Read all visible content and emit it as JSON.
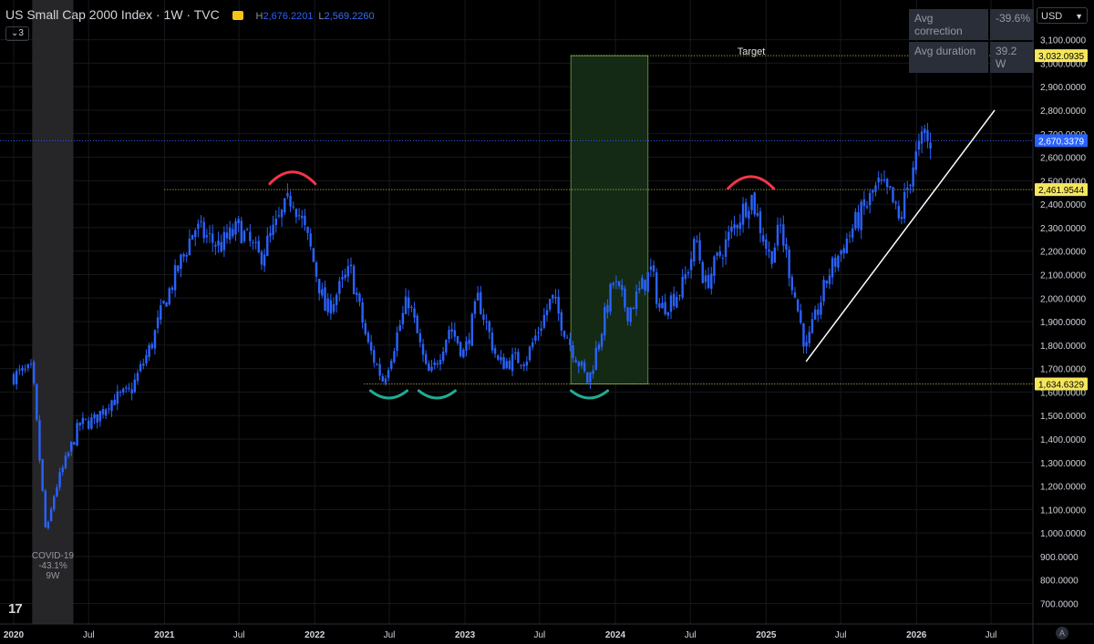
{
  "header": {
    "title": "US Small Cap 2000 Index · 1W · TVC",
    "high_label": "H",
    "high_value": "2,676.2201",
    "low_label": "L",
    "low_value": "2,569.2260",
    "collapse_label": "3"
  },
  "stats": {
    "rows": [
      {
        "label": "Avg correction",
        "value": "-39.6%"
      },
      {
        "label": "Avg duration",
        "value": "39.2 W"
      }
    ]
  },
  "currency": "USD",
  "auto_label": "A",
  "logo_text": "17",
  "colors": {
    "candles": "#2962ff",
    "resistance_arc": "#f23645",
    "support_arc": "#22ab94",
    "trendline": "#ffffff",
    "level_line": "#d4c45c",
    "price_line": "#2962ff",
    "covid_band": "#2a2a2e",
    "box_fill": "#142a14",
    "box_stroke": "#5a8a3a",
    "level_label_bg": "#f5e65b",
    "price_label_bg": "#2962ff"
  },
  "chart_data": {
    "type": "candlestick",
    "interval": "1W",
    "ylim": [
      650,
      3150
    ],
    "y_ticks": [
      700,
      800,
      900,
      1000,
      1100,
      1200,
      1300,
      1400,
      1500,
      1600,
      1700,
      1800,
      1900,
      2000,
      2100,
      2200,
      2300,
      2400,
      2500,
      2600,
      2700,
      2800,
      2900,
      3000,
      3100
    ],
    "y_tick_labels": [
      "700.0000",
      "800.0000",
      "900.0000",
      "1,000.0000",
      "1,100.0000",
      "1,200.0000",
      "1,300.0000",
      "1,400.0000",
      "1,500.0000",
      "1,600.0000",
      "1,700.0000",
      "1,800.0000",
      "1,900.0000",
      "2,000.0000",
      "2,100.0000",
      "2,200.0000",
      "2,300.0000",
      "2,400.0000",
      "2,500.0000",
      "2,600.0000",
      "2,700.0000",
      "2,800.0000",
      "2,900.0000",
      "3,000.0000",
      "3,100.0000"
    ],
    "x_ticks": [
      {
        "date": "2020-01-01",
        "label": "2020",
        "bold": true
      },
      {
        "date": "2020-07-01",
        "label": "Jul",
        "bold": false
      },
      {
        "date": "2021-01-01",
        "label": "2021",
        "bold": true
      },
      {
        "date": "2021-07-01",
        "label": "Jul",
        "bold": false
      },
      {
        "date": "2022-01-01",
        "label": "2022",
        "bold": true
      },
      {
        "date": "2022-07-01",
        "label": "Jul",
        "bold": false
      },
      {
        "date": "2023-01-01",
        "label": "2023",
        "bold": true
      },
      {
        "date": "2023-07-01",
        "label": "Jul",
        "bold": false
      },
      {
        "date": "2024-01-01",
        "label": "2024",
        "bold": true
      },
      {
        "date": "2024-07-01",
        "label": "Jul",
        "bold": false
      },
      {
        "date": "2025-01-01",
        "label": "2025",
        "bold": true
      },
      {
        "date": "2025-07-01",
        "label": "Jul",
        "bold": false
      },
      {
        "date": "2026-01-01",
        "label": "2026",
        "bold": true
      },
      {
        "date": "2026-07-01",
        "label": "Jul",
        "bold": false
      }
    ],
    "price_path": [
      [
        "2020-01-01",
        1670
      ],
      [
        "2020-02-15",
        1690
      ],
      [
        "2020-03-20",
        980
      ],
      [
        "2020-04-10",
        1180
      ],
      [
        "2020-06-08",
        1460
      ],
      [
        "2020-07-15",
        1480
      ],
      [
        "2020-08-20",
        1560
      ],
      [
        "2020-10-10",
        1600
      ],
      [
        "2020-11-30",
        1800
      ],
      [
        "2020-12-31",
        1975
      ],
      [
        "2021-03-15",
        2300
      ],
      [
        "2021-05-15",
        2220
      ],
      [
        "2021-07-01",
        2300
      ],
      [
        "2021-08-20",
        2170
      ],
      [
        "2021-11-08",
        2440
      ],
      [
        "2021-12-20",
        2220
      ],
      [
        "2022-01-28",
        1940
      ],
      [
        "2022-03-29",
        2120
      ],
      [
        "2022-05-10",
        1800
      ],
      [
        "2022-06-16",
        1650
      ],
      [
        "2022-08-16",
        2000
      ],
      [
        "2022-09-30",
        1680
      ],
      [
        "2022-10-13",
        1680
      ],
      [
        "2022-11-25",
        1880
      ],
      [
        "2022-12-30",
        1760
      ],
      [
        "2023-02-02",
        2000
      ],
      [
        "2023-03-23",
        1720
      ],
      [
        "2023-05-31",
        1750
      ],
      [
        "2023-07-31",
        2000
      ],
      [
        "2023-09-15",
        1800
      ],
      [
        "2023-10-27",
        1640
      ],
      [
        "2023-12-27",
        2070
      ],
      [
        "2024-02-01",
        1940
      ],
      [
        "2024-03-28",
        2120
      ],
      [
        "2024-04-18",
        1950
      ],
      [
        "2024-06-10",
        2040
      ],
      [
        "2024-07-16",
        2250
      ],
      [
        "2024-08-05",
        2050
      ],
      [
        "2024-09-15",
        2200
      ],
      [
        "2024-11-25",
        2440
      ],
      [
        "2025-01-10",
        2170
      ],
      [
        "2025-02-05",
        2300
      ],
      [
        "2025-04-08",
        1780
      ],
      [
        "2025-06-01",
        2100
      ],
      [
        "2025-07-31",
        2300
      ],
      [
        "2025-09-30",
        2480
      ],
      [
        "2025-10-31",
        2430
      ],
      [
        "2025-11-20",
        2320
      ],
      [
        "2025-12-22",
        2560
      ],
      [
        "2026-01-22",
        2700
      ],
      [
        "2026-02-05",
        2620
      ]
    ],
    "candle_count": 319,
    "levels": [
      {
        "value": 3032.0935,
        "label": "3,032.0935",
        "text": "Target",
        "from": "2023-09-15"
      },
      {
        "value": 2461.9544,
        "label": "2,461.9544",
        "from": "2021-01-01"
      },
      {
        "value": 1634.6329,
        "label": "1,634.6329",
        "from": "2022-05-01"
      }
    ],
    "current_price": {
      "value": 2670.3379,
      "label": "2,670.3379"
    },
    "covid_band": {
      "from": "2020-02-15",
      "to": "2020-05-25",
      "lines": [
        "COVID-19",
        "-43.1%",
        "9W"
      ]
    },
    "box": {
      "from": "2023-09-15",
      "to": "2024-03-20",
      "y_from": 1634.6329,
      "y_to": 3032.0935
    },
    "trendline": {
      "start": [
        "2025-04-08",
        1730
      ],
      "end": [
        "2026-07-10",
        2800
      ]
    },
    "resistance_arcs": [
      {
        "center": [
          "2021-11-08",
          2510
        ]
      },
      {
        "center": [
          "2024-11-25",
          2490
        ]
      }
    ],
    "support_arcs": [
      {
        "center": [
          "2022-06-30",
          1590
        ]
      },
      {
        "center": [
          "2022-10-25",
          1590
        ]
      },
      {
        "center": [
          "2023-10-30",
          1590
        ]
      }
    ]
  }
}
